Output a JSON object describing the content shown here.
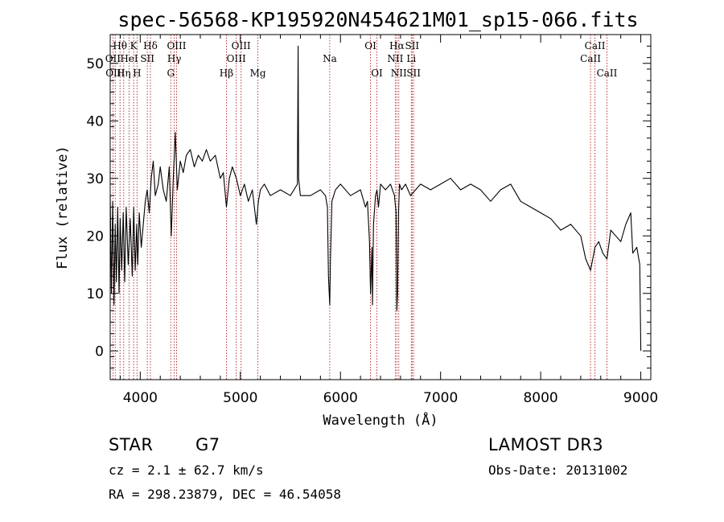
{
  "chart_data": {
    "type": "line",
    "title": "spec-56568-KP195920N454621M01_sp15-066.fits",
    "xlabel": "Wavelength (Å)",
    "ylabel": "Flux (relative)",
    "xlim": [
      3700,
      9100
    ],
    "ylim": [
      -5,
      55
    ],
    "x_ticks": [
      4000,
      5000,
      6000,
      7000,
      8000,
      9000
    ],
    "y_ticks": [
      0,
      10,
      20,
      30,
      40,
      50
    ],
    "grid": false,
    "series": [
      {
        "name": "flux",
        "x": [
          3700,
          3712,
          3725,
          3738,
          3750,
          3762,
          3775,
          3788,
          3800,
          3815,
          3830,
          3845,
          3860,
          3880,
          3900,
          3920,
          3935,
          3950,
          3965,
          3975,
          3990,
          4010,
          4030,
          4050,
          4070,
          4090,
          4110,
          4130,
          4150,
          4180,
          4200,
          4230,
          4260,
          4290,
          4310,
          4330,
          4350,
          4370,
          4400,
          4430,
          4460,
          4500,
          4540,
          4580,
          4620,
          4660,
          4700,
          4750,
          4800,
          4830,
          4861,
          4890,
          4920,
          4960,
          5000,
          5040,
          5080,
          5120,
          5160,
          5180,
          5200,
          5240,
          5300,
          5400,
          5500,
          5570,
          5577,
          5582,
          5600,
          5700,
          5800,
          5850,
          5870,
          5880,
          5893,
          5900,
          5915,
          5950,
          6000,
          6100,
          6200,
          6250,
          6270,
          6290,
          6300,
          6315,
          6320,
          6330,
          6350,
          6365,
          6380,
          6390,
          6400,
          6450,
          6500,
          6540,
          6555,
          6563,
          6570,
          6580,
          6590,
          6610,
          6650,
          6700,
          6750,
          6800,
          6900,
          7000,
          7100,
          7200,
          7300,
          7400,
          7500,
          7600,
          7700,
          7800,
          7900,
          8000,
          8100,
          8200,
          8300,
          8400,
          8450,
          8498,
          8542,
          8580,
          8620,
          8662,
          8700,
          8750,
          8800,
          8850,
          8900,
          8920,
          8960,
          8990,
          9000
        ],
        "values": [
          27,
          10,
          26,
          8,
          22,
          12,
          25,
          10,
          23,
          14,
          24,
          12,
          25,
          15,
          23,
          13,
          25,
          14,
          22,
          15,
          24,
          18,
          22,
          26,
          28,
          24,
          30,
          33,
          27,
          29,
          32,
          28,
          26,
          32,
          20,
          30,
          38,
          28,
          33,
          31,
          34,
          35,
          32,
          34,
          33,
          35,
          33,
          34,
          30,
          31,
          25,
          30,
          32,
          30,
          27,
          29,
          26,
          28,
          22,
          26,
          28,
          29,
          27,
          28,
          27,
          29,
          53,
          30,
          27,
          27,
          28,
          27,
          25,
          13,
          8,
          16,
          26,
          28,
          29,
          27,
          28,
          25,
          26,
          19,
          10,
          18,
          8,
          22,
          27,
          28,
          25,
          27,
          29,
          28,
          29,
          27,
          24,
          7,
          10,
          24,
          29,
          28,
          29,
          27,
          28,
          29,
          28,
          29,
          30,
          28,
          29,
          28,
          26,
          28,
          29,
          26,
          25,
          24,
          23,
          21,
          22,
          20,
          16,
          14,
          18,
          19,
          17,
          16,
          21,
          20,
          19,
          22,
          24,
          17,
          18,
          15,
          0
        ]
      }
    ],
    "spectral_lines": [
      {
        "name": "Hθ",
        "wl": 3798,
        "row": 1
      },
      {
        "name": "Hη",
        "wl": 3835,
        "row": 3
      },
      {
        "name": "OII",
        "wl": 3727,
        "row": 2
      },
      {
        "name": "OIII",
        "wl": 3750,
        "row": 3
      },
      {
        "name": "HeI",
        "wl": 3889,
        "row": 2
      },
      {
        "name": "K",
        "wl": 3934,
        "row": 1
      },
      {
        "name": "H",
        "wl": 3968,
        "row": 3
      },
      {
        "name": "SII",
        "wl": 4071,
        "row": 2
      },
      {
        "name": "Hδ",
        "wl": 4102,
        "row": 1
      },
      {
        "name": "G",
        "wl": 4305,
        "row": 3
      },
      {
        "name": "Hγ",
        "wl": 4340,
        "row": 2
      },
      {
        "name": "OIII",
        "wl": 4363,
        "row": 1
      },
      {
        "name": "Hβ",
        "wl": 4861,
        "row": 3
      },
      {
        "name": "OIII",
        "wl": 4959,
        "row": 2
      },
      {
        "name": "OIII",
        "wl": 5007,
        "row": 1
      },
      {
        "name": "Mg",
        "wl": 5175,
        "row": 3
      },
      {
        "name": "Na",
        "wl": 5893,
        "row": 2
      },
      {
        "name": "OI",
        "wl": 6300,
        "row": 1
      },
      {
        "name": "OI",
        "wl": 6364,
        "row": 3
      },
      {
        "name": "NII",
        "wl": 6548,
        "row": 2
      },
      {
        "name": "Hα",
        "wl": 6563,
        "row": 1
      },
      {
        "name": "NII",
        "wl": 6583,
        "row": 3
      },
      {
        "name": "Li",
        "wl": 6708,
        "row": 2
      },
      {
        "name": "SII",
        "wl": 6716,
        "row": 1
      },
      {
        "name": "SII",
        "wl": 6731,
        "row": 3
      },
      {
        "name": "CaII",
        "wl": 8498,
        "row": 2
      },
      {
        "name": "CaII",
        "wl": 8542,
        "row": 1
      },
      {
        "name": "CaII",
        "wl": 8662,
        "row": 3
      }
    ]
  },
  "info": {
    "object_class": "STAR",
    "subclass": "G7",
    "survey": "LAMOST DR3",
    "cz": "cz = 2.1 ± 62.7 km/s",
    "obs_date": "Obs-Date: 20131002",
    "coords": "RA = 298.23879, DEC =  46.54058"
  },
  "colors": {
    "line_marker": "#b22222",
    "spectrum": "#000000"
  }
}
